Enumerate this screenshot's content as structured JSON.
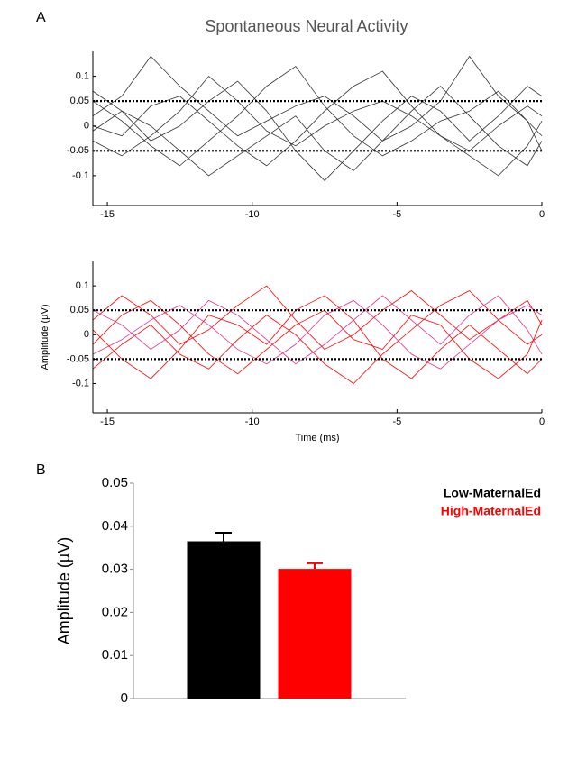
{
  "chart_data": [
    {
      "type": "line",
      "label": "A",
      "title": "Spontaneous Neural Activity",
      "x": [
        -15.5,
        -14.5,
        -13.5,
        -12.5,
        -11.5,
        -10.5,
        -9.5,
        -8.5,
        -7.5,
        -6.5,
        -5.5,
        -4.5,
        -3.5,
        -2.5,
        -1.5,
        -0.5,
        0
      ],
      "series": [
        {
          "color": "#333333",
          "values": [
            0.02,
            0.06,
            0.14,
            0.08,
            0.03,
            -0.02,
            0.01,
            0.04,
            0.06,
            0.02,
            -0.03,
            0.0,
            0.05,
            0.14,
            0.06,
            0.01,
            -0.02
          ]
        },
        {
          "color": "#333333",
          "values": [
            -0.03,
            -0.06,
            -0.02,
            0.03,
            0.1,
            0.05,
            -0.01,
            -0.04,
            0.0,
            0.03,
            0.05,
            0.02,
            -0.02,
            -0.05,
            0.0,
            0.04,
            0.02
          ]
        },
        {
          "color": "#333333",
          "values": [
            0.05,
            0.01,
            -0.04,
            -0.08,
            -0.03,
            0.02,
            0.08,
            0.12,
            0.04,
            -0.02,
            -0.06,
            -0.03,
            0.01,
            0.03,
            0.07,
            0.01,
            -0.05
          ]
        },
        {
          "color": "#333333",
          "values": [
            -0.01,
            0.03,
            0.0,
            -0.05,
            -0.1,
            -0.06,
            -0.02,
            0.02,
            -0.05,
            -0.09,
            -0.03,
            0.03,
            0.08,
            0.02,
            -0.04,
            -0.08,
            -0.03
          ]
        },
        {
          "color": "#333333",
          "values": [
            0.0,
            -0.02,
            0.04,
            0.06,
            0.01,
            -0.04,
            -0.08,
            -0.03,
            0.03,
            0.08,
            0.11,
            0.04,
            -0.02,
            -0.06,
            -0.1,
            -0.04,
            0.01
          ]
        },
        {
          "color": "#333333",
          "values": [
            0.07,
            0.03,
            -0.03,
            0.0,
            0.05,
            0.09,
            0.03,
            -0.05,
            -0.11,
            -0.05,
            0.01,
            0.06,
            0.03,
            -0.03,
            0.02,
            0.08,
            0.06
          ]
        }
      ],
      "hlines": [
        0.05,
        -0.05
      ],
      "xlim": [
        -15.5,
        0
      ],
      "xticks": [
        -15,
        -10,
        -5,
        0
      ],
      "ylim": [
        -0.16,
        0.15
      ],
      "yticks": [
        0.1,
        0.05,
        0,
        -0.05,
        -0.1
      ]
    },
    {
      "type": "line",
      "xlabel": "Time (ms)",
      "ylabel": "Amplitude (µV)",
      "x": [
        -15.5,
        -14.5,
        -13.5,
        -12.5,
        -11.5,
        -10.5,
        -9.5,
        -8.5,
        -7.5,
        -6.5,
        -5.5,
        -4.5,
        -3.5,
        -2.5,
        -1.5,
        -0.5,
        0
      ],
      "series": [
        {
          "color": "#ff0000",
          "values": [
            0.03,
            0.08,
            0.04,
            -0.02,
            0.01,
            0.06,
            0.1,
            0.03,
            -0.03,
            0.0,
            0.05,
            0.09,
            0.04,
            -0.01,
            0.03,
            0.07,
            0.02
          ]
        },
        {
          "color": "#e8308c",
          "values": [
            -0.04,
            -0.01,
            0.03,
            0.06,
            0.02,
            -0.03,
            -0.06,
            -0.02,
            0.04,
            0.07,
            0.02,
            -0.04,
            -0.07,
            -0.02,
            0.03,
            0.06,
            0.04
          ]
        },
        {
          "color": "#ff0000",
          "values": [
            0.01,
            -0.05,
            -0.09,
            -0.03,
            0.04,
            0.02,
            -0.02,
            0.05,
            0.08,
            0.03,
            -0.05,
            -0.09,
            -0.03,
            0.02,
            -0.03,
            -0.08,
            -0.05
          ]
        },
        {
          "color": "#ff0000",
          "values": [
            -0.07,
            -0.02,
            0.02,
            -0.04,
            -0.07,
            -0.01,
            0.04,
            0.0,
            -0.06,
            -0.1,
            -0.04,
            0.01,
            0.06,
            0.09,
            0.03,
            -0.02,
            0.0
          ]
        },
        {
          "color": "#e8308c",
          "values": [
            0.05,
            0.02,
            -0.03,
            0.01,
            0.07,
            0.04,
            -0.01,
            -0.06,
            -0.02,
            0.03,
            0.08,
            0.03,
            -0.02,
            0.04,
            0.08,
            0.01,
            -0.04
          ]
        },
        {
          "color": "#ff0000",
          "values": [
            -0.02,
            0.04,
            0.07,
            0.02,
            -0.04,
            -0.08,
            -0.03,
            0.02,
            0.05,
            -0.01,
            -0.03,
            0.04,
            0.02,
            -0.05,
            -0.09,
            -0.04,
            0.03
          ]
        }
      ],
      "hlines": [
        0.05,
        -0.05
      ],
      "xlim": [
        -15.5,
        0
      ],
      "xticks": [
        -15,
        -10,
        -5,
        0
      ],
      "ylim": [
        -0.16,
        0.15
      ],
      "yticks": [
        0.1,
        0.05,
        0,
        -0.05,
        -0.1
      ]
    },
    {
      "type": "bar",
      "label": "B",
      "ylabel": "Amplitude (µV)",
      "series": [
        {
          "name": "Low-MaternalEd",
          "color": "#000000",
          "values": [
            0.0365
          ],
          "errors": [
            0.002
          ]
        },
        {
          "name": "High-MaternalEd",
          "color": "#ff0000",
          "values": [
            0.0301
          ],
          "errors": [
            0.0013
          ]
        }
      ],
      "ylim": [
        0,
        0.05
      ],
      "yticks": [
        0,
        0.01,
        0.02,
        0.03,
        0.04,
        0.05
      ]
    }
  ]
}
